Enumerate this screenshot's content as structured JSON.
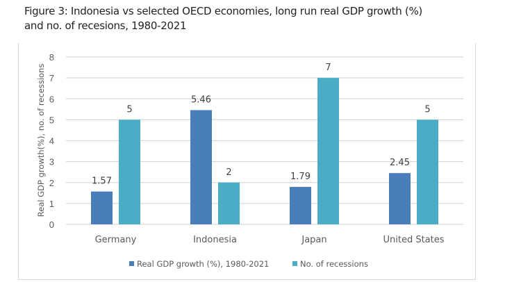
{
  "title_line1": "Figure 3: Indonesia vs selected OECD economies, long run real GDP growth (%)",
  "title_line2": "and no. of recesions, 1980-2021",
  "chart_data": {
    "type": "bar",
    "title": "Figure 3: Indonesia vs selected OECD economies, long run real GDP growth (%) and no. of recesions, 1980-2021",
    "categories": [
      "Germany",
      "Indonesia",
      "Japan",
      "United States"
    ],
    "series": [
      {
        "name": "Real GDP growth (%), 1980-2021",
        "values": [
          1.57,
          5.46,
          1.79,
          2.45
        ],
        "color": "#4a7ebb",
        "labels": [
          "1.57",
          "5.46",
          "1.79",
          "2.45"
        ]
      },
      {
        "name": "No. of recessions",
        "values": [
          5,
          2,
          7,
          5
        ],
        "color": "#4bacc6",
        "labels": [
          "5",
          "2",
          "7",
          "5"
        ]
      }
    ],
    "xlabel": "",
    "ylabel": "Real GDP growth(%), no. of recessions",
    "ylim": [
      0,
      8
    ],
    "yticks": [
      "0",
      "1",
      "2",
      "3",
      "4",
      "5",
      "6",
      "7",
      "8"
    ],
    "grid": true,
    "legend_position": "bottom"
  }
}
